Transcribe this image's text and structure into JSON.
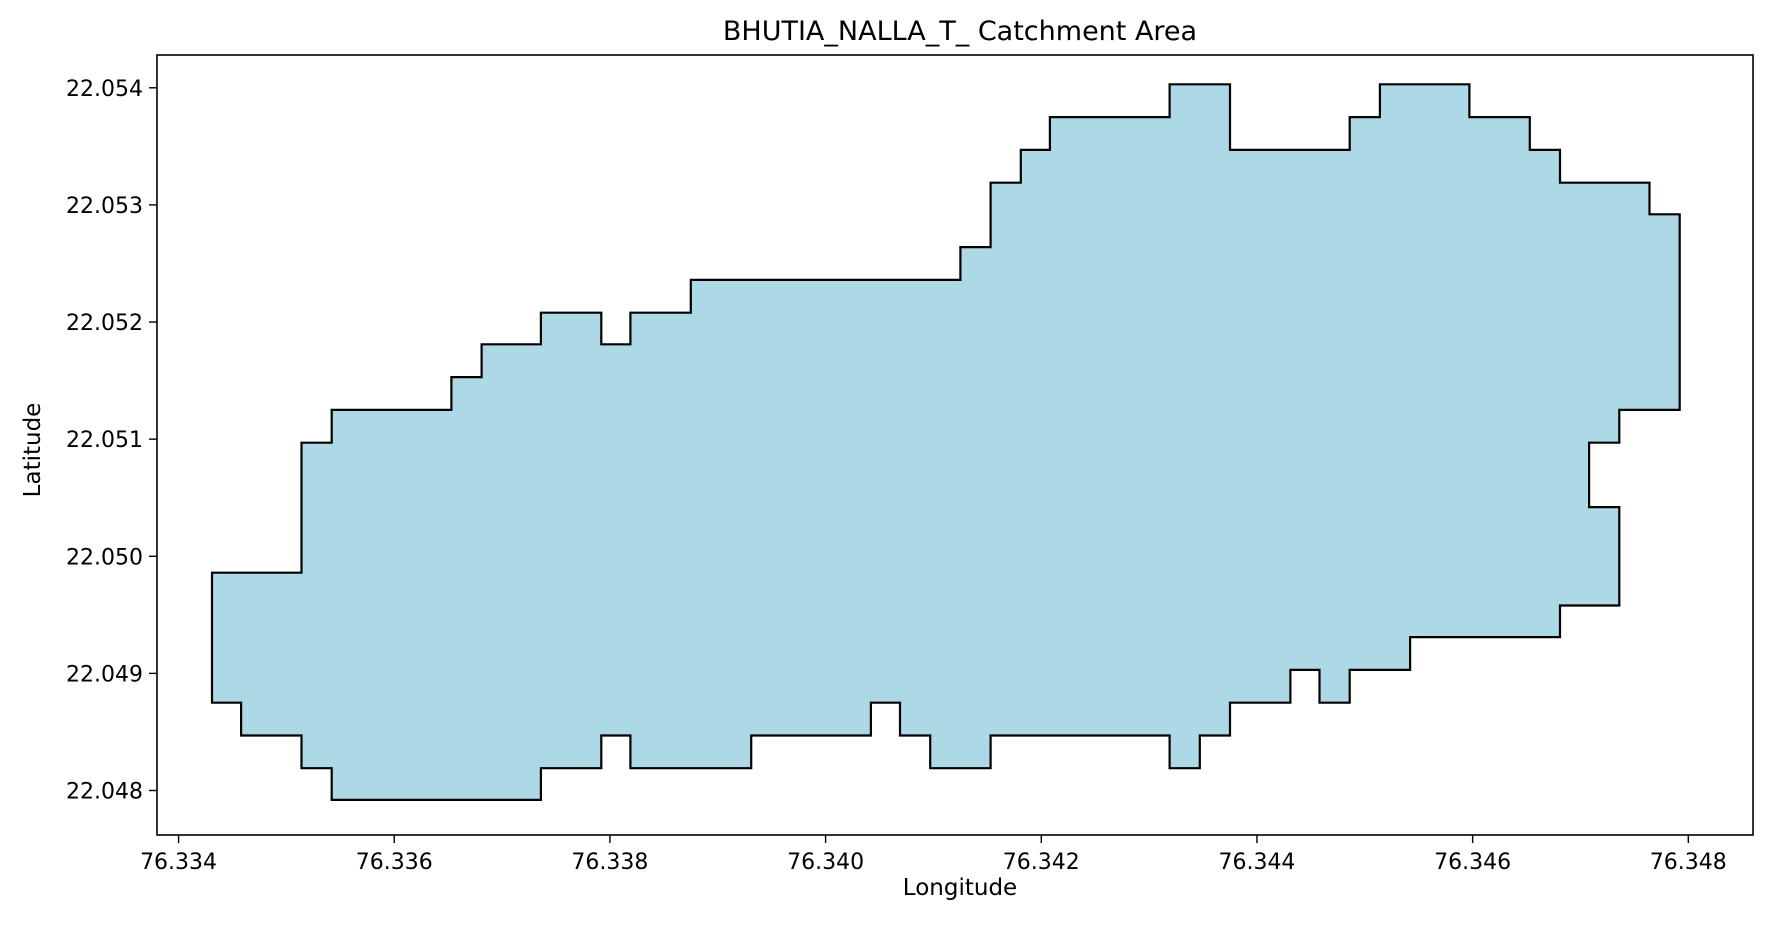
{
  "chart_data": {
    "type": "area",
    "title": "BHUTIA_NALLA_T_ Catchment Area",
    "xlabel": "Longitude",
    "ylabel": "Latitude",
    "xlim": [
      76.3338,
      76.3486
    ],
    "ylim": [
      22.04762,
      22.05428
    ],
    "xticks": [
      "76.334",
      "76.336",
      "76.338",
      "76.340",
      "76.342",
      "76.344",
      "76.346",
      "76.348"
    ],
    "yticks": [
      "22.048",
      "22.049",
      "22.050",
      "22.051",
      "22.052",
      "22.053",
      "22.054"
    ],
    "grid": false,
    "fill_color": "#add8e6",
    "edge_color": "#000000",
    "polygon": [
      [
        76.33431,
        22.04986
      ],
      [
        76.33514,
        22.04986
      ],
      [
        76.33514,
        22.05097
      ],
      [
        76.33542,
        22.05097
      ],
      [
        76.33542,
        22.05125
      ],
      [
        76.33653,
        22.05125
      ],
      [
        76.33653,
        22.05153
      ],
      [
        76.33681,
        22.05153
      ],
      [
        76.33681,
        22.05181
      ],
      [
        76.33736,
        22.05181
      ],
      [
        76.33736,
        22.05208
      ],
      [
        76.33792,
        22.05208
      ],
      [
        76.33792,
        22.05181
      ],
      [
        76.33819,
        22.05181
      ],
      [
        76.33819,
        22.05208
      ],
      [
        76.33875,
        22.05208
      ],
      [
        76.33875,
        22.05236
      ],
      [
        76.34125,
        22.05236
      ],
      [
        76.34125,
        22.05264
      ],
      [
        76.34153,
        22.05264
      ],
      [
        76.34153,
        22.05319
      ],
      [
        76.34181,
        22.05319
      ],
      [
        76.34181,
        22.05347
      ],
      [
        76.34208,
        22.05347
      ],
      [
        76.34208,
        22.05375
      ],
      [
        76.34319,
        22.05375
      ],
      [
        76.34319,
        22.05403
      ],
      [
        76.34375,
        22.05403
      ],
      [
        76.34375,
        22.05347
      ],
      [
        76.34486,
        22.05347
      ],
      [
        76.34486,
        22.05375
      ],
      [
        76.34514,
        22.05375
      ],
      [
        76.34514,
        22.05403
      ],
      [
        76.34597,
        22.05403
      ],
      [
        76.34597,
        22.05375
      ],
      [
        76.34653,
        22.05375
      ],
      [
        76.34653,
        22.05347
      ],
      [
        76.34681,
        22.05347
      ],
      [
        76.34681,
        22.05319
      ],
      [
        76.34764,
        22.05319
      ],
      [
        76.34764,
        22.05292
      ],
      [
        76.34792,
        22.05292
      ],
      [
        76.34792,
        22.05125
      ],
      [
        76.34736,
        22.05125
      ],
      [
        76.34736,
        22.05097
      ],
      [
        76.34708,
        22.05097
      ],
      [
        76.34708,
        22.05042
      ],
      [
        76.34736,
        22.05042
      ],
      [
        76.34736,
        22.04958
      ],
      [
        76.34681,
        22.04958
      ],
      [
        76.34681,
        22.04931
      ],
      [
        76.34542,
        22.04931
      ],
      [
        76.34542,
        22.04903
      ],
      [
        76.34486,
        22.04903
      ],
      [
        76.34486,
        22.04875
      ],
      [
        76.34458,
        22.04875
      ],
      [
        76.34458,
        22.04903
      ],
      [
        76.34431,
        22.04903
      ],
      [
        76.34431,
        22.04875
      ],
      [
        76.34375,
        22.04875
      ],
      [
        76.34375,
        22.04847
      ],
      [
        76.34347,
        22.04847
      ],
      [
        76.34347,
        22.04819
      ],
      [
        76.34319,
        22.04819
      ],
      [
        76.34319,
        22.04847
      ],
      [
        76.34153,
        22.04847
      ],
      [
        76.34153,
        22.04819
      ],
      [
        76.34097,
        22.04819
      ],
      [
        76.34097,
        22.04847
      ],
      [
        76.34069,
        22.04847
      ],
      [
        76.34069,
        22.04875
      ],
      [
        76.34042,
        22.04875
      ],
      [
        76.34042,
        22.04847
      ],
      [
        76.33931,
        22.04847
      ],
      [
        76.33931,
        22.04819
      ],
      [
        76.33819,
        22.04819
      ],
      [
        76.33819,
        22.04847
      ],
      [
        76.33792,
        22.04847
      ],
      [
        76.33792,
        22.04819
      ],
      [
        76.33736,
        22.04819
      ],
      [
        76.33736,
        22.04792
      ],
      [
        76.33542,
        22.04792
      ],
      [
        76.33542,
        22.04819
      ],
      [
        76.33514,
        22.04819
      ],
      [
        76.33514,
        22.04847
      ],
      [
        76.33458,
        22.04847
      ],
      [
        76.33458,
        22.04875
      ],
      [
        76.33431,
        22.04875
      ]
    ]
  }
}
